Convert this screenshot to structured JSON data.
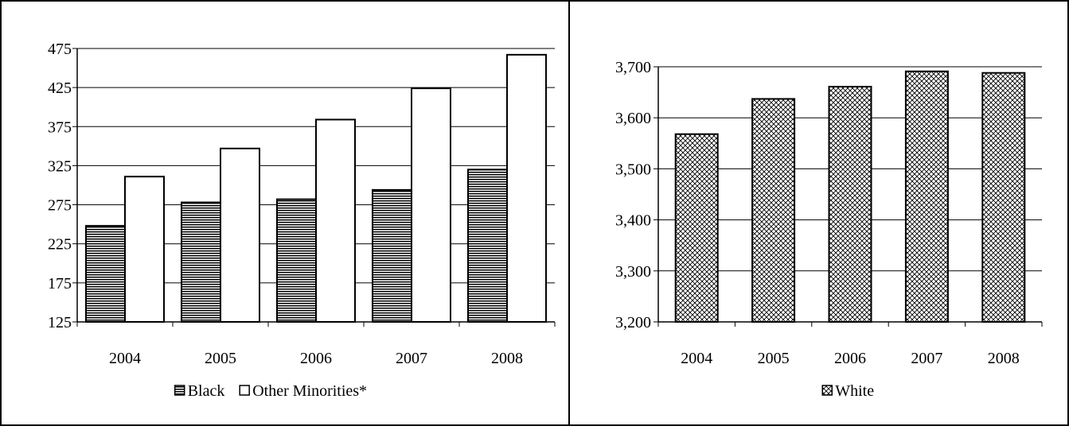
{
  "charts": {
    "chart_data": [
      {
        "type": "bar",
        "title": "",
        "xlabel": "",
        "ylabel": "",
        "categories": [
          "2004",
          "2005",
          "2006",
          "2007",
          "2008"
        ],
        "series": [
          {
            "name": "Black",
            "values": [
              248,
              278,
              282,
              294,
              320
            ],
            "pattern": "horizontal-lines"
          },
          {
            "name": "Other Minorities*",
            "values": [
              311,
              347,
              384,
              424,
              467
            ],
            "pattern": "solid-white"
          }
        ],
        "ylim": [
          125,
          475
        ],
        "yticks": [
          125,
          175,
          225,
          275,
          325,
          375,
          425,
          475
        ],
        "ytick_labels": [
          "125",
          "175",
          "225",
          "275",
          "325",
          "375",
          "425",
          "475"
        ],
        "grid": true,
        "legend_position": "bottom"
      },
      {
        "type": "bar",
        "title": "",
        "xlabel": "",
        "ylabel": "",
        "categories": [
          "2004",
          "2005",
          "2006",
          "2007",
          "2008"
        ],
        "series": [
          {
            "name": "White",
            "values": [
              3568,
              3637,
              3661,
              3691,
              3688
            ],
            "pattern": "crosshatch"
          }
        ],
        "ylim": [
          3200,
          3700
        ],
        "yticks": [
          3200,
          3300,
          3400,
          3500,
          3600,
          3700
        ],
        "ytick_labels": [
          "3,200",
          "3,300",
          "3,400",
          "3,500",
          "3,600",
          "3,700"
        ],
        "grid": true,
        "legend_position": "bottom"
      }
    ]
  },
  "colors": {
    "border": "#000000",
    "grid": "#000000",
    "background": "#ffffff"
  }
}
